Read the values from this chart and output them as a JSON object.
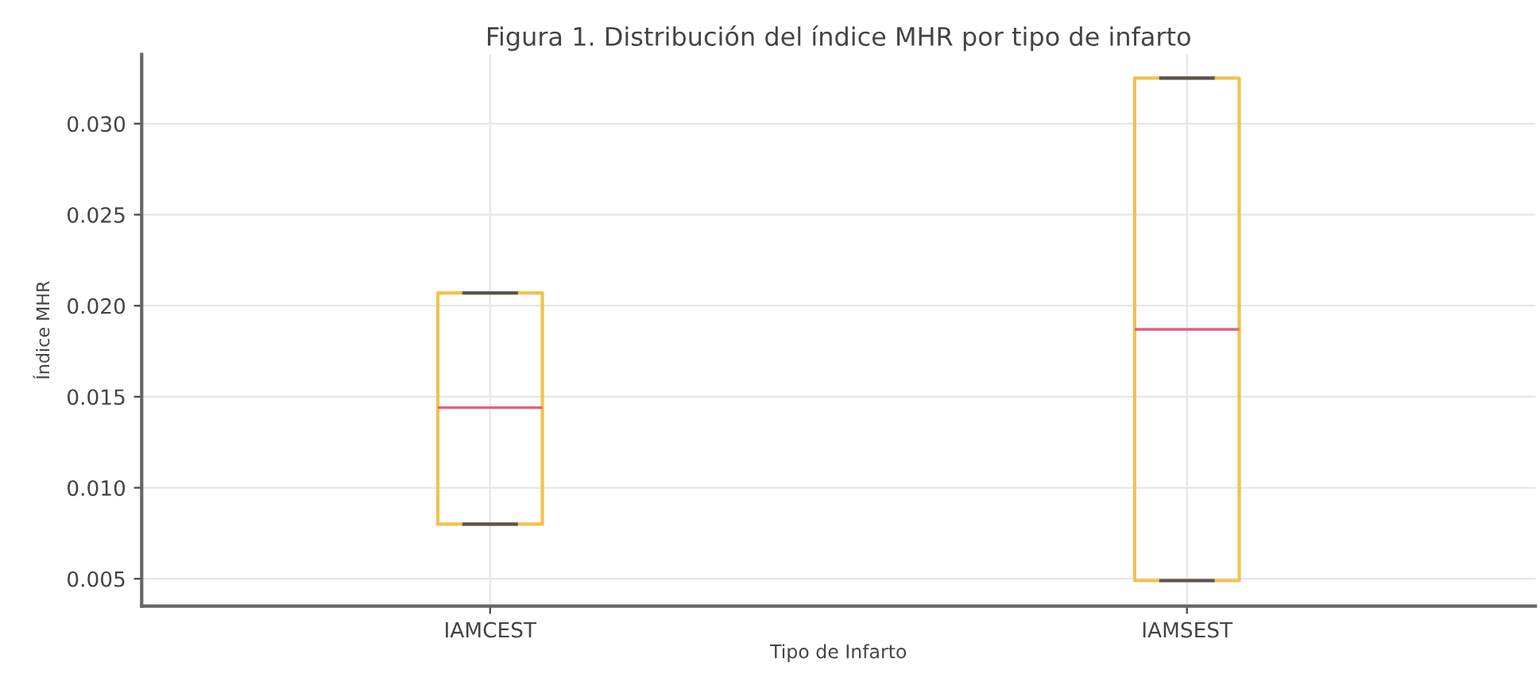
{
  "chart_data": {
    "type": "box",
    "title": "Figura 1. Distribución del índice MHR por tipo de infarto",
    "xlabel": "Tipo de Infarto",
    "ylabel": "Índice MHR",
    "categories": [
      "IAMCEST",
      "IAMSEST"
    ],
    "series": [
      {
        "color": "#f2c14e",
        "boxes": [
          {
            "low": 0.008,
            "q1": 0.008,
            "median": 0.0144,
            "q3": 0.0207,
            "high": 0.0207
          },
          {
            "low": 0.0049,
            "q1": 0.0049,
            "median": 0.0187,
            "q3": 0.0325,
            "high": 0.0325
          }
        ]
      }
    ],
    "ylim": [
      0.0035,
      0.0338
    ],
    "yticks": [
      {
        "value": 0.005,
        "label": "0.005"
      },
      {
        "value": 0.01,
        "label": "0.010"
      },
      {
        "value": 0.015,
        "label": "0.015"
      },
      {
        "value": 0.02,
        "label": "0.020"
      },
      {
        "value": 0.025,
        "label": "0.025"
      },
      {
        "value": 0.03,
        "label": "0.030"
      }
    ],
    "grid": true,
    "legend": false
  }
}
